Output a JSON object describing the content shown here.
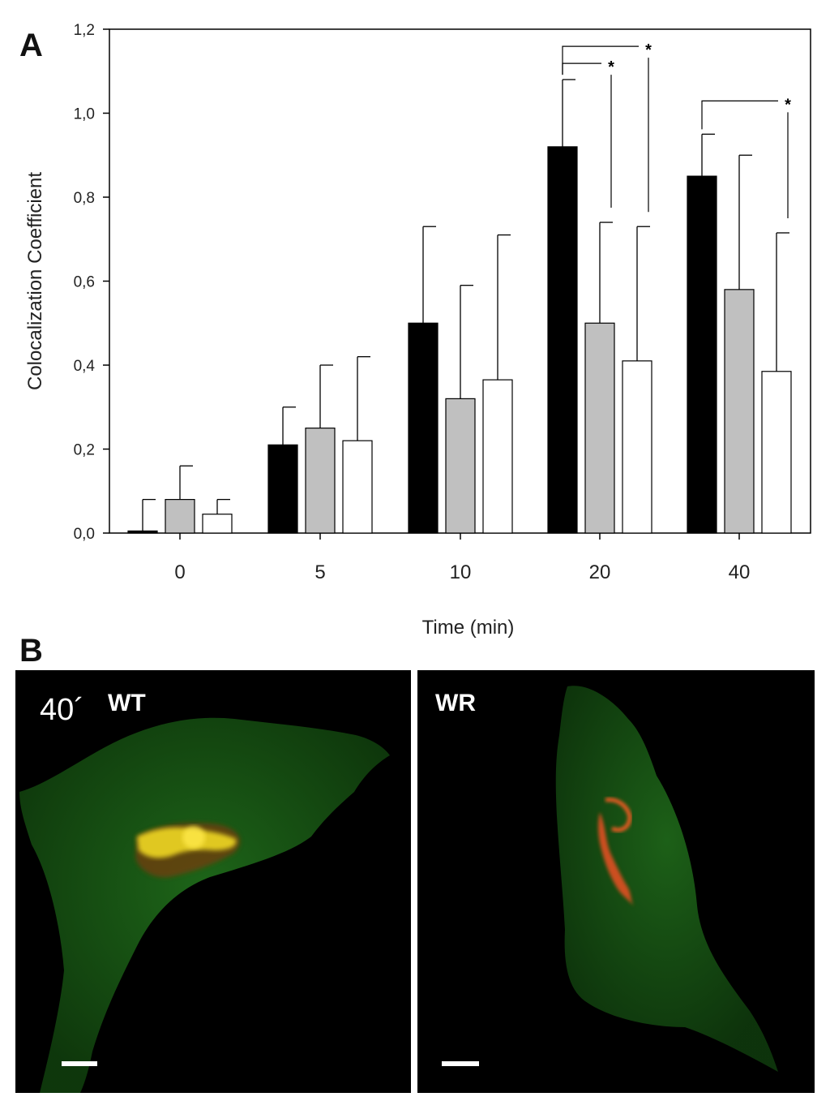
{
  "panel_labels": {
    "a": "A",
    "b": "B"
  },
  "chart_data": {
    "type": "bar",
    "categories": [
      "0",
      "5",
      "10",
      "20",
      "40"
    ],
    "series": [
      {
        "fill": "#000000",
        "values": [
          0.005,
          0.21,
          0.5,
          0.92,
          0.85
        ],
        "errors": [
          0.075,
          0.09,
          0.23,
          0.16,
          0.1
        ]
      },
      {
        "fill": "#c0c0c0",
        "values": [
          0.08,
          0.25,
          0.32,
          0.5,
          0.58
        ],
        "errors": [
          0.08,
          0.15,
          0.27,
          0.24,
          0.32
        ]
      },
      {
        "fill": "#ffffff",
        "values": [
          0.045,
          0.22,
          0.365,
          0.41,
          0.385
        ],
        "errors": [
          0.035,
          0.2,
          0.345,
          0.32,
          0.33
        ]
      }
    ],
    "xlabel": "Time (min)",
    "ylabel": "Colocalization Coefficient",
    "ylim": [
      0,
      1.2
    ],
    "yticks": [
      "0,0",
      "0,2",
      "0,4",
      "0,6",
      "0,8",
      "1,0",
      "1,2"
    ],
    "significance": [
      {
        "category": "20",
        "from_series": 0,
        "to_series": 1,
        "label": "*"
      },
      {
        "category": "20",
        "from_series": 0,
        "to_series": 2,
        "label": "*"
      },
      {
        "category": "40",
        "from_series": 0,
        "to_series": 2,
        "label": "*"
      }
    ],
    "grid": false,
    "legend": "none"
  },
  "micrographs": {
    "left": {
      "time_label": "40´",
      "label": "WT"
    },
    "right": {
      "label": "WR"
    }
  }
}
